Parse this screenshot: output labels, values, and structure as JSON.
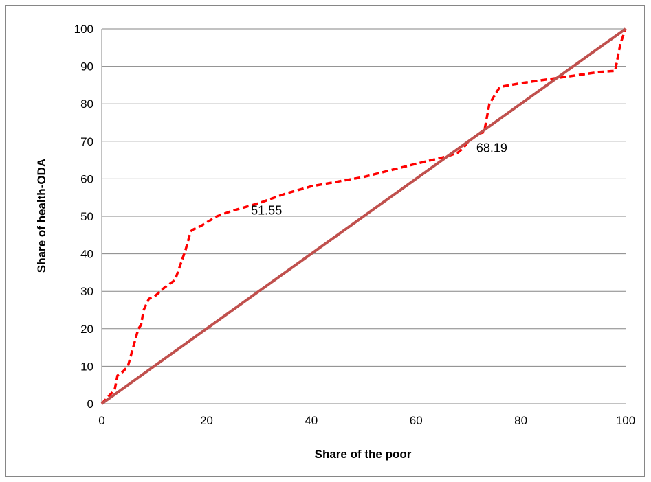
{
  "chart_data": {
    "type": "line",
    "xlabel": "Share of the poor",
    "ylabel": "Share of health-ODA",
    "xlim": [
      0,
      100
    ],
    "ylim": [
      0,
      100
    ],
    "xticks": [
      "0",
      "20",
      "40",
      "60",
      "80",
      "100"
    ],
    "yticks": [
      "0",
      "10",
      "20",
      "30",
      "40",
      "50",
      "60",
      "70",
      "80",
      "90",
      "100"
    ],
    "grid": "horizontal",
    "legend": "none",
    "series": [
      {
        "style": "dashed",
        "color": "#ff0000",
        "x": [
          0,
          2,
          2.5,
          3,
          4,
          5,
          6,
          7,
          7.5,
          8,
          9,
          10,
          12,
          14,
          15,
          16,
          17,
          17.5,
          19,
          22,
          25,
          30,
          35,
          40,
          50,
          60,
          66,
          68,
          69,
          70,
          72,
          73,
          74,
          76,
          78,
          80,
          85,
          90,
          95,
          98,
          99,
          100
        ],
        "y": [
          0,
          3,
          4,
          7.5,
          8.5,
          10,
          15,
          20,
          21,
          25,
          28,
          28.5,
          31,
          33,
          37,
          41,
          46,
          46.5,
          47.5,
          50,
          51.5,
          53.5,
          56,
          58,
          60.5,
          64,
          66,
          67,
          68.19,
          70,
          72,
          72.5,
          80,
          84.5,
          85,
          85.5,
          86.5,
          87.5,
          88.5,
          88.8,
          96,
          100
        ]
      },
      {
        "style": "solid",
        "color": "#c0504d",
        "x": [
          0,
          100
        ],
        "y": [
          0,
          100
        ]
      }
    ],
    "annotations": [
      {
        "text": "51.55",
        "x": 28.5,
        "y": 51.55
      },
      {
        "text": "68.19",
        "x": 71.5,
        "y": 68.19
      }
    ]
  }
}
